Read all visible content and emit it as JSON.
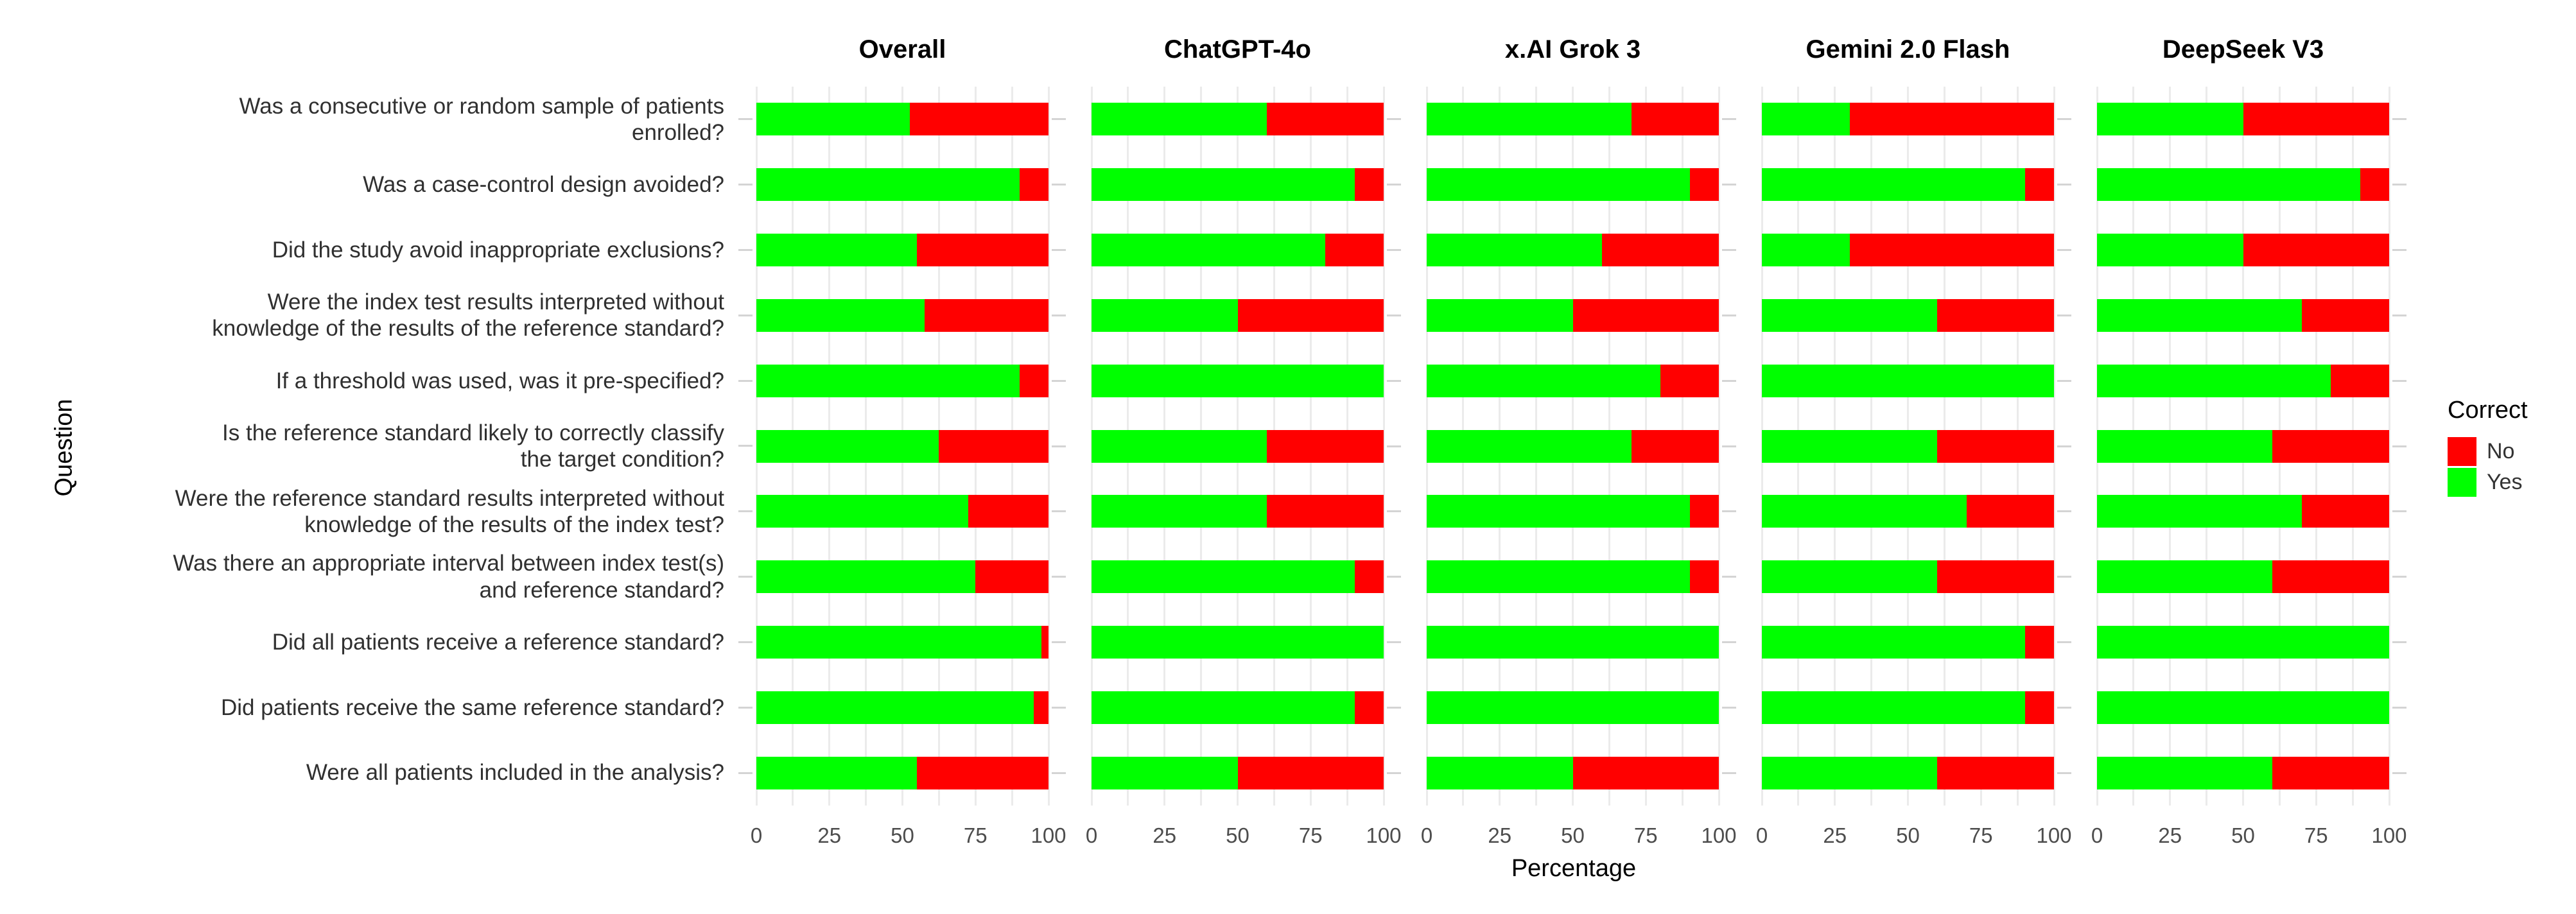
{
  "figure": {
    "y_axis_title": "Question",
    "x_axis_title": "Percentage",
    "x_ticks": [
      "0",
      "25",
      "50",
      "75",
      "100"
    ],
    "questions_wrapped": [
      [
        "Was a consecutive or random sample of patients",
        "enrolled?"
      ],
      [
        "Was a case-control design avoided?"
      ],
      [
        "Did the study avoid inappropriate exclusions?"
      ],
      [
        "Were the index test results interpreted without",
        "knowledge of the results of the reference standard?"
      ],
      [
        "If a threshold was used, was it pre-specified?"
      ],
      [
        "Is the reference standard likely to correctly classify",
        "the target condition?"
      ],
      [
        "Were the reference standard results interpreted without",
        "knowledge of the results of the index test?"
      ],
      [
        "Was there an appropriate interval between index test(s)",
        "and reference standard?"
      ],
      [
        "Did all patients receive a reference standard?"
      ],
      [
        "Did patients receive the same reference standard?"
      ],
      [
        "Were all patients included in the analysis?"
      ]
    ],
    "panels": [
      {
        "title": "Overall",
        "yes": [
          52.5,
          90,
          55,
          57.5,
          90,
          62.5,
          72.5,
          75,
          97.5,
          95,
          55
        ]
      },
      {
        "title": "ChatGPT-4o",
        "yes": [
          60,
          90,
          80,
          50,
          100,
          60,
          60,
          90,
          100,
          90,
          50
        ]
      },
      {
        "title": "x.AI Grok 3",
        "yes": [
          70,
          90,
          60,
          50,
          80,
          70,
          90,
          90,
          100,
          100,
          50
        ]
      },
      {
        "title": "Gemini 2.0 Flash",
        "yes": [
          30,
          90,
          30,
          60,
          100,
          60,
          70,
          60,
          90,
          90,
          60
        ]
      },
      {
        "title": "DeepSeek V3",
        "yes": [
          50,
          90,
          50,
          70,
          80,
          60,
          70,
          60,
          100,
          100,
          60
        ]
      }
    ],
    "legend": {
      "title": "Correct",
      "items": [
        {
          "label": "No",
          "color": "#FF0000"
        },
        {
          "label": "Yes",
          "color": "#00FF00"
        }
      ]
    },
    "colors": {
      "yes": "#00FF00",
      "no": "#FF0000",
      "grid": "#EBEBEB",
      "tick": "#D4D4D4",
      "axis_text": "#4D4D4D",
      "label_text": "#303030",
      "title_text": "#000000",
      "background": "#FFFFFF"
    }
  },
  "chart_data": {
    "type": "bar",
    "orientation": "horizontal",
    "stacked": true,
    "title": "",
    "xlabel": "Percentage",
    "ylabel": "Question",
    "xlim": [
      0,
      100
    ],
    "x_ticks": [
      0,
      25,
      50,
      75,
      100
    ],
    "grid": true,
    "facets": [
      "Overall",
      "ChatGPT-4o",
      "x.AI Grok 3",
      "Gemini 2.0 Flash",
      "DeepSeek V3"
    ],
    "categories": [
      "Was a consecutive or random sample of patients enrolled?",
      "Was a case-control design avoided?",
      "Did the study avoid inappropriate exclusions?",
      "Were the index test results interpreted without knowledge of the results of the reference standard?",
      "If a threshold was used, was it pre-specified?",
      "Is the reference standard likely to correctly classify the target condition?",
      "Were the reference standard results interpreted without knowledge of the results of the index test?",
      "Was there an appropriate interval between index test(s) and reference standard?",
      "Did all patients receive a reference standard?",
      "Did patients receive the same reference standard?",
      "Were all patients included in the analysis?"
    ],
    "series": [
      {
        "facet": "Overall",
        "name_yes": "Yes",
        "yes": [
          52.5,
          90,
          55,
          57.5,
          90,
          62.5,
          72.5,
          75,
          97.5,
          95,
          55
        ],
        "name_no": "No",
        "no": [
          47.5,
          10,
          45,
          42.5,
          10,
          37.5,
          27.5,
          25,
          2.5,
          5,
          45
        ]
      },
      {
        "facet": "ChatGPT-4o",
        "name_yes": "Yes",
        "yes": [
          60,
          90,
          80,
          50,
          100,
          60,
          60,
          90,
          100,
          90,
          50
        ],
        "name_no": "No",
        "no": [
          40,
          10,
          20,
          50,
          0,
          40,
          40,
          10,
          0,
          10,
          50
        ]
      },
      {
        "facet": "x.AI Grok 3",
        "name_yes": "Yes",
        "yes": [
          70,
          90,
          60,
          50,
          80,
          70,
          90,
          90,
          100,
          100,
          50
        ],
        "name_no": "No",
        "no": [
          30,
          10,
          40,
          50,
          20,
          30,
          10,
          10,
          0,
          0,
          50
        ]
      },
      {
        "facet": "Gemini 2.0 Flash",
        "name_yes": "Yes",
        "yes": [
          30,
          90,
          30,
          60,
          100,
          60,
          70,
          60,
          90,
          90,
          60
        ],
        "name_no": "No",
        "no": [
          70,
          10,
          70,
          40,
          0,
          40,
          30,
          40,
          10,
          10,
          40
        ]
      },
      {
        "facet": "DeepSeek V3",
        "name_yes": "Yes",
        "yes": [
          50,
          90,
          50,
          70,
          80,
          60,
          70,
          60,
          100,
          100,
          60
        ],
        "name_no": "No",
        "no": [
          50,
          10,
          50,
          30,
          20,
          40,
          30,
          40,
          0,
          0,
          40
        ]
      }
    ],
    "legend": {
      "title": "Correct",
      "position": "right",
      "entries": [
        {
          "label": "No",
          "color": "#FF0000"
        },
        {
          "label": "Yes",
          "color": "#00FF00"
        }
      ]
    }
  }
}
